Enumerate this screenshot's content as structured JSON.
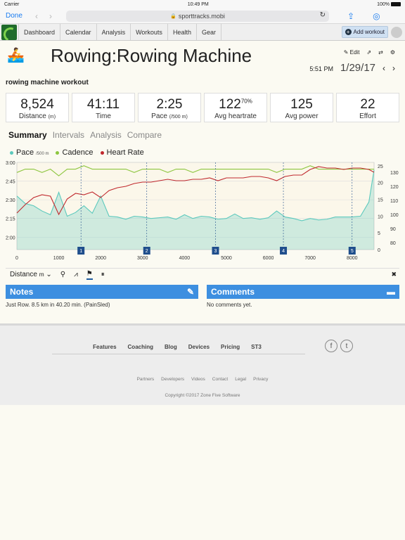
{
  "status": {
    "carrier": "Carrier",
    "time": "10:49 PM",
    "battery": "100%"
  },
  "browser": {
    "done": "Done",
    "url": "sporttracks.mobi"
  },
  "nav": {
    "items": [
      "Dashboard",
      "Calendar",
      "Analysis",
      "Workouts",
      "Health",
      "Gear"
    ],
    "add_workout": "Add workout"
  },
  "workout": {
    "title": "Rowing:Rowing Machine",
    "edit": "Edit",
    "time": "5:51 PM",
    "date": "1/29/17",
    "name": "rowing machine workout"
  },
  "stats": [
    {
      "value": "8,524",
      "label": "Distance",
      "unit": "(m)"
    },
    {
      "value": "41:11",
      "label": "Time",
      "unit": ""
    },
    {
      "value": "2:25",
      "label": "Pace",
      "unit": "(/500 m)"
    },
    {
      "value": "122",
      "sup": "70%",
      "label": "Avg heartrate",
      "unit": ""
    },
    {
      "value": "125",
      "label": "Avg power",
      "unit": ""
    },
    {
      "value": "22",
      "label": "Effort",
      "unit": ""
    }
  ],
  "tabs": [
    "Summary",
    "Intervals",
    "Analysis",
    "Compare"
  ],
  "legend": {
    "pace": "Pace",
    "pace_unit": "/500 m",
    "cadence": "Cadence",
    "heartrate": "Heart Rate"
  },
  "colors": {
    "pace": "#5cc9bd",
    "cadence": "#8dc63f",
    "heartrate": "#c0282d",
    "lap": "#1f4e8c",
    "panel": "#3d8fe0"
  },
  "chart_data": {
    "type": "line",
    "x": [
      0,
      200,
      400,
      600,
      800,
      1000,
      1200,
      1400,
      1600,
      1800,
      2000,
      2200,
      2400,
      2600,
      2800,
      3000,
      3200,
      3400,
      3600,
      3800,
      4000,
      4200,
      4400,
      4600,
      4800,
      5000,
      5200,
      5400,
      5600,
      5800,
      6000,
      6200,
      6400,
      6600,
      6800,
      7000,
      7200,
      7400,
      7600,
      7800,
      8000,
      8200,
      8400,
      8524
    ],
    "xticks": [
      "0",
      "1000",
      "2000",
      "3000",
      "4000",
      "5000",
      "6000",
      "7000",
      "8000"
    ],
    "yleft_ticks": [
      "3:00",
      "2:45",
      "2:30",
      "2:15",
      "2:00"
    ],
    "yright_inner_ticks": [
      "0",
      "5",
      "10",
      "15",
      "20",
      "25"
    ],
    "yright_outer_ticks": [
      "80",
      "90",
      "100",
      "110",
      "120",
      "130"
    ],
    "series": [
      {
        "name": "Pace",
        "values": [
          2.55,
          2.45,
          2.42,
          2.35,
          2.3,
          2.6,
          2.28,
          2.33,
          2.42,
          2.32,
          2.55,
          2.28,
          2.27,
          2.24,
          2.28,
          2.27,
          2.25,
          2.26,
          2.27,
          2.24,
          2.3,
          2.25,
          2.28,
          2.27,
          2.24,
          2.25,
          2.31,
          2.25,
          2.26,
          2.24,
          2.26,
          2.35,
          2.27,
          2.25,
          2.22,
          2.25,
          2.23,
          2.24,
          2.27,
          2.27,
          2.27,
          2.28,
          2.47,
          2.9
        ]
      },
      {
        "name": "Cadence",
        "values": [
          23,
          24,
          24,
          23,
          24,
          22,
          24,
          24,
          25,
          24,
          24,
          24,
          24,
          24,
          23,
          24,
          24,
          24,
          23,
          24,
          24,
          23,
          24,
          24,
          24,
          24,
          24,
          24,
          24,
          24,
          24,
          23,
          24,
          24,
          24,
          25,
          24,
          24,
          24,
          24,
          24,
          24,
          24,
          24
        ]
      },
      {
        "name": "Heart Rate",
        "values": [
          101,
          107,
          112,
          114,
          113,
          100,
          111,
          115,
          114,
          116,
          112,
          117,
          119,
          120,
          122,
          123,
          123,
          124,
          125,
          124,
          124,
          125,
          125,
          126,
          124,
          126,
          126,
          126,
          127,
          127,
          126,
          124,
          127,
          128,
          128,
          132,
          134,
          133,
          133,
          132,
          133,
          133,
          132,
          130
        ]
      }
    ],
    "laps": [
      "1",
      "2",
      "3",
      "4",
      "5"
    ],
    "lap_x": [
      1530,
      3100,
      4740,
      6360,
      8000
    ]
  },
  "chart_toolbar": {
    "distance": "Distance",
    "unit": "m"
  },
  "notes": {
    "title": "Notes",
    "text": "Just Row. 8.5 km in 40.20 min. (PainSled)"
  },
  "comments": {
    "title": "Comments",
    "text": "No comments yet."
  },
  "footer": {
    "links": [
      "Features",
      "Coaching",
      "Blog",
      "Devices",
      "Pricing",
      "ST3"
    ],
    "sub": [
      "Partners",
      "Developers",
      "Videos",
      "Contact",
      "Legal",
      "Privacy"
    ],
    "copyright": "Copyright ©2017 Zone Five Software"
  }
}
